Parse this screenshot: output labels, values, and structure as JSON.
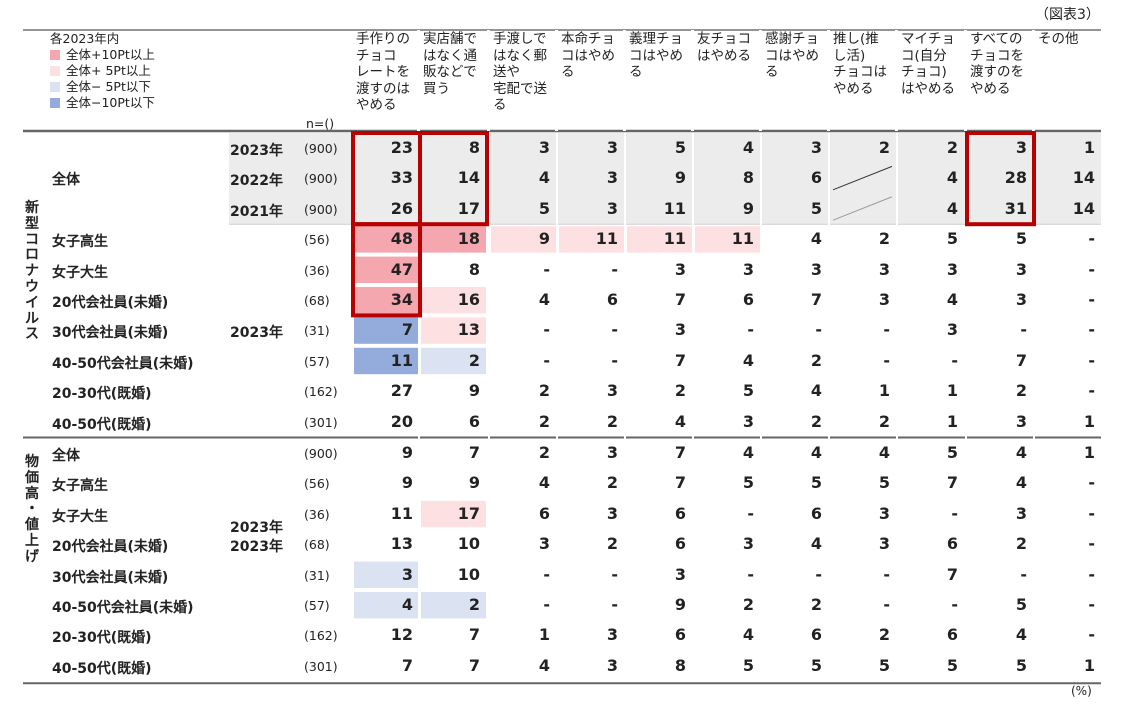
{
  "figure_label": "（図表3）",
  "unit_label": "(%)",
  "legend": {
    "title": "各2023年内",
    "items": [
      {
        "key": "p10",
        "label": "全体+10Pt以上",
        "color": "#f4a7ae"
      },
      {
        "key": "p5",
        "label": "全体+  5Pt以上",
        "color": "#fde0e2"
      },
      {
        "key": "m5",
        "label": "全体−  5Pt以下",
        "color": "#dbe3f3"
      },
      {
        "key": "m10",
        "label": "全体−10Pt以下",
        "color": "#94acdc"
      }
    ]
  },
  "n_label": "n=()",
  "highlight_color": "#b80000",
  "diag_color": "#999999",
  "chart_data": {
    "type": "table",
    "columns": [
      "手作りの\nチョコ\nレートを\n渡すのは\nやめる",
      "実店舗で\nはなく通\n販などで\n買う",
      "手渡しで\nはなく郵\n送や\n宅配で送\nる",
      "本命チョ\nコはやめ\nる",
      "義理チョ\nコはやめ\nる",
      "友チョコ\nはやめる",
      "感謝チョ\nコはやめ\nる",
      "推し(推\nし活)\nチョコは\nやめる",
      "マイチョ\nコ(自分\nチョコ)\nはやめる",
      "すべての\nチョコを\n渡すのを\nやめる",
      "その他"
    ],
    "groups": [
      {
        "label": "新型コロナウイルス",
        "rows": [
          {
            "label": "全体",
            "year": "2023年",
            "n": "(900)",
            "values": [
              "23",
              "8",
              "3",
              "3",
              "5",
              "4",
              "3",
              "2",
              "2",
              "3",
              "1"
            ],
            "fills": [
              "",
              "",
              "",
              "",
              "",
              "",
              "",
              "",
              "",
              "",
              ""
            ]
          },
          {
            "label": "",
            "year": "2022年",
            "n": "(900)",
            "values": [
              "33",
              "14",
              "4",
              "3",
              "9",
              "8",
              "6",
              "",
              "4",
              "28",
              "14"
            ],
            "fills": [
              "",
              "",
              "",
              "",
              "",
              "",
              "",
              "",
              "",
              "",
              ""
            ]
          },
          {
            "label": "",
            "year": "2021年",
            "n": "(900)",
            "values": [
              "26",
              "17",
              "5",
              "3",
              "11",
              "9",
              "5",
              "",
              "4",
              "31",
              "14"
            ],
            "fills": [
              "",
              "",
              "",
              "",
              "",
              "",
              "",
              "",
              "",
              "",
              ""
            ]
          },
          {
            "label": "女子高生",
            "year": "",
            "n": "(56)",
            "values": [
              "48",
              "18",
              "9",
              "11",
              "11",
              "11",
              "4",
              "2",
              "5",
              "5",
              "-"
            ],
            "fills": [
              "p10",
              "p10",
              "p5",
              "p5",
              "p5",
              "p5",
              "",
              "",
              "",
              "",
              ""
            ]
          },
          {
            "label": "女子大生",
            "year": "",
            "n": "(36)",
            "values": [
              "47",
              "8",
              "-",
              "-",
              "3",
              "3",
              "3",
              "3",
              "3",
              "3",
              "-"
            ],
            "fills": [
              "p10",
              "",
              "",
              "",
              "",
              "",
              "",
              "",
              "",
              "",
              ""
            ]
          },
          {
            "label": "20代会社員(未婚)",
            "year": "",
            "n": "(68)",
            "values": [
              "34",
              "16",
              "4",
              "6",
              "7",
              "6",
              "7",
              "3",
              "4",
              "3",
              "-"
            ],
            "fills": [
              "p10",
              "p5",
              "",
              "",
              "",
              "",
              "",
              "",
              "",
              "",
              ""
            ]
          },
          {
            "label": "30代会社員(未婚)",
            "year": "2023年",
            "n": "(31)",
            "values": [
              "7",
              "13",
              "-",
              "-",
              "3",
              "-",
              "-",
              "-",
              "3",
              "-",
              "-"
            ],
            "fills": [
              "m10",
              "p5",
              "",
              "",
              "",
              "",
              "",
              "",
              "",
              "",
              ""
            ]
          },
          {
            "label": "40-50代会社員(未婚)",
            "year": "",
            "n": "(57)",
            "values": [
              "11",
              "2",
              "-",
              "-",
              "7",
              "4",
              "2",
              "-",
              "-",
              "7",
              "-"
            ],
            "fills": [
              "m10",
              "m5",
              "",
              "",
              "",
              "",
              "",
              "",
              "",
              "",
              ""
            ]
          },
          {
            "label": "20-30代(既婚)",
            "year": "",
            "n": "(162)",
            "values": [
              "27",
              "9",
              "2",
              "3",
              "2",
              "5",
              "4",
              "1",
              "1",
              "2",
              "-"
            ],
            "fills": [
              "",
              "",
              "",
              "",
              "",
              "",
              "",
              "",
              "",
              "",
              ""
            ]
          },
          {
            "label": "40-50代(既婚)",
            "year": "",
            "n": "(301)",
            "values": [
              "20",
              "6",
              "2",
              "2",
              "4",
              "3",
              "2",
              "2",
              "1",
              "3",
              "1"
            ],
            "fills": [
              "",
              "",
              "",
              "",
              "",
              "",
              "",
              "",
              "",
              "",
              ""
            ]
          }
        ]
      },
      {
        "label": "物価高・値上げ",
        "rows": [
          {
            "label": "全体",
            "year": "",
            "n": "(900)",
            "values": [
              "9",
              "7",
              "2",
              "3",
              "7",
              "4",
              "4",
              "4",
              "5",
              "4",
              "1"
            ],
            "fills": [
              "",
              "",
              "",
              "",
              "",
              "",
              "",
              "",
              "",
              "",
              ""
            ]
          },
          {
            "label": "女子高生",
            "year": "",
            "n": "(56)",
            "values": [
              "9",
              "9",
              "4",
              "2",
              "7",
              "5",
              "5",
              "5",
              "7",
              "4",
              "-"
            ],
            "fills": [
              "",
              "",
              "",
              "",
              "",
              "",
              "",
              "",
              "",
              "",
              ""
            ]
          },
          {
            "label": "女子大生",
            "year": "",
            "n": "(36)",
            "values": [
              "11",
              "17",
              "6",
              "3",
              "6",
              "-",
              "6",
              "3",
              "-",
              "3",
              "-"
            ],
            "fills": [
              "",
              "p5",
              "",
              "",
              "",
              "",
              "",
              "",
              "",
              "",
              ""
            ]
          },
          {
            "label": "20代会社員(未婚)",
            "year": "2023年",
            "n": "(68)",
            "values": [
              "13",
              "10",
              "3",
              "2",
              "6",
              "3",
              "4",
              "3",
              "6",
              "2",
              "-"
            ],
            "fills": [
              "",
              "",
              "",
              "",
              "",
              "",
              "",
              "",
              "",
              "",
              ""
            ]
          },
          {
            "label": "30代会社員(未婚)",
            "year": "",
            "n": "(31)",
            "values": [
              "3",
              "10",
              "-",
              "-",
              "3",
              "-",
              "-",
              "-",
              "7",
              "-",
              "-"
            ],
            "fills": [
              "m5",
              "",
              "",
              "",
              "",
              "",
              "",
              "",
              "",
              "",
              ""
            ]
          },
          {
            "label": "40-50代会社員(未婚)",
            "year": "",
            "n": "(57)",
            "values": [
              "4",
              "2",
              "-",
              "-",
              "9",
              "2",
              "2",
              "-",
              "-",
              "5",
              "-"
            ],
            "fills": [
              "m5",
              "m5",
              "",
              "",
              "",
              "",
              "",
              "",
              "",
              "",
              ""
            ]
          },
          {
            "label": "20-30代(既婚)",
            "year": "",
            "n": "(162)",
            "values": [
              "12",
              "7",
              "1",
              "3",
              "6",
              "4",
              "6",
              "2",
              "6",
              "4",
              "-"
            ],
            "fills": [
              "",
              "",
              "",
              "",
              "",
              "",
              "",
              "",
              "",
              "",
              ""
            ]
          },
          {
            "label": "40-50代(既婚)",
            "year": "",
            "n": "(301)",
            "values": [
              "7",
              "7",
              "4",
              "3",
              "8",
              "5",
              "5",
              "5",
              "5",
              "5",
              "1"
            ],
            "fills": [
              "",
              "",
              "",
              "",
              "",
              "",
              "",
              "",
              "",
              "",
              ""
            ]
          }
        ]
      }
    ],
    "highlight_boxes": [
      {
        "col": 0,
        "group": 0,
        "row_from": 0,
        "row_to": 2
      },
      {
        "col": 1,
        "group": 0,
        "row_from": 0,
        "row_to": 2
      },
      {
        "col": 9,
        "group": 0,
        "row_from": 0,
        "row_to": 2
      },
      {
        "col": 0,
        "group": 0,
        "row_from": 3,
        "row_to": 5
      }
    ],
    "diagonal_cells": [
      {
        "col": 7,
        "group": 0,
        "row": 1
      },
      {
        "col": 7,
        "group": 0,
        "row": 2
      }
    ]
  }
}
